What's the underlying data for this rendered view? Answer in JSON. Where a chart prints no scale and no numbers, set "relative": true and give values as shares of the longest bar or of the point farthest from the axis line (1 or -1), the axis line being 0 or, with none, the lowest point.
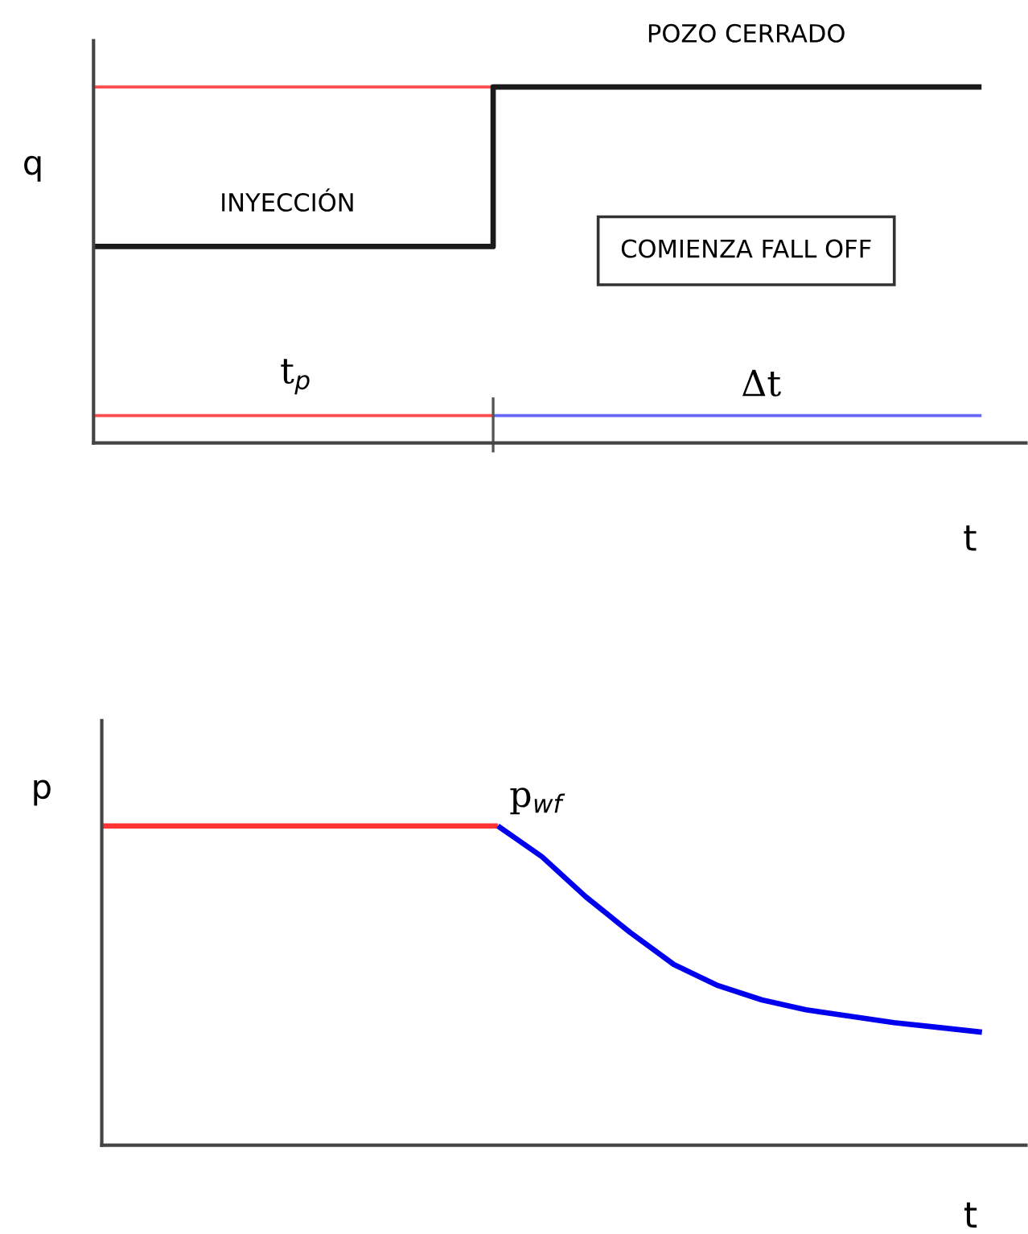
{
  "chart_data": [
    {
      "type": "line",
      "relative": true,
      "ylabel": "q",
      "xlabel": "t",
      "categories": [
        null,
        null,
        null,
        null,
        null,
        null,
        null,
        null,
        null,
        null,
        null,
        null,
        null,
        null,
        null,
        null,
        null,
        null,
        null,
        null,
        null
      ],
      "series": [
        {
          "color": "#ff4d4d",
          "values": [
            1,
            1,
            1,
            1,
            1,
            1,
            1,
            1,
            1,
            1,
            null,
            null,
            null,
            null,
            null,
            null,
            null,
            null,
            null,
            null,
            null
          ]
        },
        {
          "type": "step",
          "color": "#1a1a1a",
          "values": [
            0.552,
            0.552,
            0.552,
            0.552,
            0.552,
            0.552,
            0.552,
            0.552,
            0.552,
            1,
            1,
            1,
            1,
            1,
            1,
            1,
            1,
            1,
            1,
            1,
            1
          ]
        },
        {
          "color": "#ff4d4d",
          "values": [
            0.077,
            0.077,
            0.077,
            0.077,
            0.077,
            0.077,
            0.077,
            0.077,
            0.077,
            0.077,
            null,
            null,
            null,
            null,
            null,
            null,
            null,
            null,
            null,
            null,
            null
          ]
        },
        {
          "color": "#6666ff",
          "values": [
            null,
            null,
            null,
            null,
            null,
            null,
            null,
            null,
            null,
            0.077,
            0.077,
            0.077,
            0.077,
            0.077,
            0.077,
            0.077,
            0.077,
            0.077,
            0.077,
            0.077,
            0.077
          ]
        }
      ],
      "annotations": [
        "INYECCIÓN",
        "POZO CERRADO",
        "COMIENZA FALL OFF",
        "t$_{p}$",
        "Δt"
      ]
    },
    {
      "type": "line",
      "relative": true,
      "ylabel": "p",
      "xlabel": "t",
      "categories": [
        null,
        null,
        null,
        null,
        null,
        null,
        null,
        null,
        null,
        null,
        null,
        null,
        null,
        null,
        null,
        null,
        null,
        null,
        null,
        null,
        null
      ],
      "series": [
        {
          "color": "#ff3333",
          "values": [
            1,
            1,
            1,
            1,
            1,
            1,
            1,
            1,
            1,
            1,
            null,
            null,
            null,
            null,
            null,
            null,
            null,
            null,
            null,
            null,
            null
          ]
        },
        {
          "color": "#0000ee",
          "values": [
            null,
            null,
            null,
            null,
            null,
            null,
            null,
            null,
            null,
            1,
            0.904,
            0.778,
            0.667,
            0.566,
            0.5,
            0.455,
            0.424,
            0.404,
            0.384,
            0.369,
            0.354
          ]
        }
      ],
      "annotations": [
        "p$_{wf}$"
      ]
    }
  ]
}
